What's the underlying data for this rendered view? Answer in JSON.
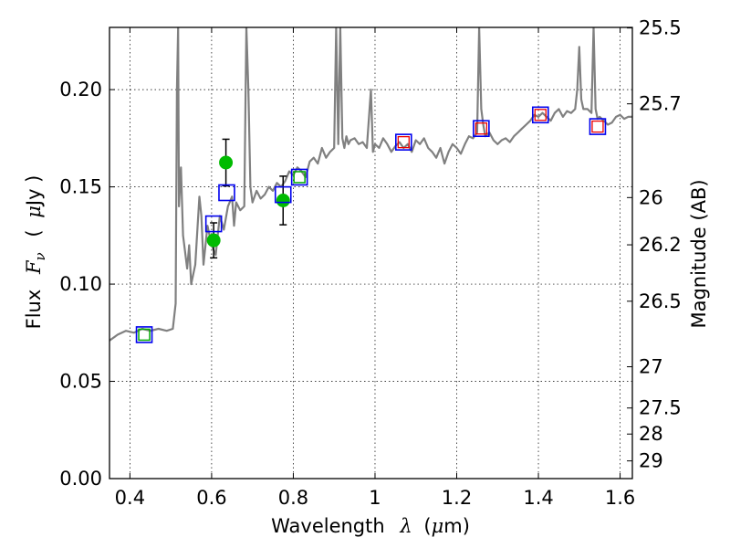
{
  "chart_data": {
    "type": "line",
    "xlabel_text": "Wavelength",
    "xlabel_symbol": "λ",
    "xlabel_unit_open": "(",
    "xlabel_unit_mu": "μ",
    "xlabel_unit_rest": "m)",
    "ylabel_text": "Flux",
    "ylabel_symbol": "F",
    "ylabel_subscript": "ν",
    "ylabel_unit_open": "(",
    "ylabel_unit_mu": "μ",
    "ylabel_unit_rest": "Jy )",
    "y2label": "Magnitude (AB)",
    "xlim": [
      0.35,
      1.63
    ],
    "ylim": [
      0.0,
      0.232
    ],
    "grid": true,
    "x_ticks": [
      {
        "value": 0.4,
        "label": "0.4"
      },
      {
        "value": 0.6,
        "label": "0.6"
      },
      {
        "value": 0.8,
        "label": "0.8"
      },
      {
        "value": 1.0,
        "label": "1"
      },
      {
        "value": 1.2,
        "label": "1.2"
      },
      {
        "value": 1.4,
        "label": "1.4"
      },
      {
        "value": 1.6,
        "label": "1.6"
      }
    ],
    "y_ticks": [
      {
        "value": 0.0,
        "label": "0.00"
      },
      {
        "value": 0.05,
        "label": "0.05"
      },
      {
        "value": 0.1,
        "label": "0.10"
      },
      {
        "value": 0.15,
        "label": "0.15"
      },
      {
        "value": 0.2,
        "label": "0.20"
      }
    ],
    "y2_ticks": [
      {
        "flux": 0.2317,
        "label": "25.5"
      },
      {
        "flux": 0.1927,
        "label": "25.7"
      },
      {
        "flux": 0.1445,
        "label": "26"
      },
      {
        "flux": 0.1202,
        "label": "26.2"
      },
      {
        "flux": 0.0912,
        "label": "26.5"
      },
      {
        "flux": 0.0575,
        "label": "27"
      },
      {
        "flux": 0.0363,
        "label": "27.5"
      },
      {
        "flux": 0.0229,
        "label": "28"
      },
      {
        "flux": 0.0091,
        "label": "29"
      }
    ],
    "series": [
      {
        "kind": "model-spectrum",
        "color": "#808080",
        "x": [
          0.35,
          0.37,
          0.39,
          0.41,
          0.43,
          0.45,
          0.47,
          0.49,
          0.505,
          0.512,
          0.515,
          0.518,
          0.52,
          0.525,
          0.53,
          0.54,
          0.545,
          0.55,
          0.56,
          0.57,
          0.575,
          0.58,
          0.59,
          0.6,
          0.61,
          0.615,
          0.62,
          0.63,
          0.64,
          0.65,
          0.655,
          0.66,
          0.67,
          0.68,
          0.685,
          0.69,
          0.695,
          0.7,
          0.71,
          0.72,
          0.73,
          0.74,
          0.75,
          0.76,
          0.77,
          0.78,
          0.79,
          0.8,
          0.81,
          0.82,
          0.83,
          0.84,
          0.85,
          0.86,
          0.87,
          0.88,
          0.89,
          0.9,
          0.905,
          0.91,
          0.915,
          0.92,
          0.925,
          0.93,
          0.935,
          0.94,
          0.95,
          0.96,
          0.97,
          0.98,
          0.99,
          0.995,
          1.0,
          1.01,
          1.02,
          1.03,
          1.04,
          1.05,
          1.06,
          1.07,
          1.08,
          1.09,
          1.1,
          1.11,
          1.12,
          1.13,
          1.14,
          1.15,
          1.16,
          1.17,
          1.18,
          1.19,
          1.2,
          1.21,
          1.22,
          1.23,
          1.24,
          1.25,
          1.255,
          1.26,
          1.265,
          1.27,
          1.28,
          1.29,
          1.3,
          1.31,
          1.32,
          1.33,
          1.34,
          1.35,
          1.36,
          1.37,
          1.38,
          1.39,
          1.4,
          1.41,
          1.42,
          1.43,
          1.44,
          1.45,
          1.46,
          1.47,
          1.48,
          1.49,
          1.495,
          1.5,
          1.505,
          1.51,
          1.52,
          1.53,
          1.535,
          1.54,
          1.545,
          1.55,
          1.56,
          1.57,
          1.58,
          1.59,
          1.6,
          1.61,
          1.62,
          1.63
        ],
        "y": [
          0.071,
          0.074,
          0.076,
          0.075,
          0.077,
          0.076,
          0.077,
          0.076,
          0.077,
          0.09,
          0.2,
          0.232,
          0.14,
          0.16,
          0.125,
          0.108,
          0.12,
          0.1,
          0.11,
          0.145,
          0.135,
          0.11,
          0.13,
          0.12,
          0.115,
          0.125,
          0.135,
          0.128,
          0.14,
          0.145,
          0.13,
          0.142,
          0.138,
          0.14,
          0.232,
          0.2,
          0.15,
          0.142,
          0.148,
          0.144,
          0.146,
          0.15,
          0.148,
          0.152,
          0.15,
          0.153,
          0.158,
          0.156,
          0.16,
          0.158,
          0.155,
          0.163,
          0.165,
          0.162,
          0.17,
          0.165,
          0.168,
          0.17,
          0.232,
          0.172,
          0.232,
          0.175,
          0.17,
          0.176,
          0.172,
          0.174,
          0.175,
          0.172,
          0.173,
          0.17,
          0.2,
          0.168,
          0.172,
          0.17,
          0.175,
          0.172,
          0.168,
          0.171,
          0.173,
          0.17,
          0.172,
          0.168,
          0.174,
          0.172,
          0.175,
          0.17,
          0.168,
          0.165,
          0.17,
          0.162,
          0.168,
          0.172,
          0.17,
          0.167,
          0.172,
          0.176,
          0.175,
          0.178,
          0.232,
          0.19,
          0.182,
          0.176,
          0.178,
          0.174,
          0.172,
          0.174,
          0.175,
          0.173,
          0.176,
          0.178,
          0.18,
          0.182,
          0.184,
          0.187,
          0.186,
          0.188,
          0.186,
          0.184,
          0.188,
          0.19,
          0.186,
          0.189,
          0.188,
          0.19,
          0.2,
          0.222,
          0.195,
          0.19,
          0.19,
          0.188,
          0.232,
          0.19,
          0.185,
          0.186,
          0.184,
          0.182,
          0.183,
          0.186,
          0.187,
          0.185,
          0.186,
          0.186
        ]
      },
      {
        "kind": "photometry-with-errors",
        "color": "#00bb00",
        "points": [
          {
            "x": 0.605,
            "y": 0.1225,
            "err": 0.009
          },
          {
            "x": 0.635,
            "y": 0.1625,
            "err": 0.012
          },
          {
            "x": 0.775,
            "y": 0.143,
            "err": 0.0125
          }
        ]
      },
      {
        "kind": "model-band-flux-blue",
        "color": "#0000ee",
        "points": [
          {
            "x": 0.435,
            "y": 0.074
          },
          {
            "x": 0.605,
            "y": 0.131
          },
          {
            "x": 0.637,
            "y": 0.147
          },
          {
            "x": 0.775,
            "y": 0.146
          },
          {
            "x": 0.815,
            "y": 0.155
          },
          {
            "x": 1.07,
            "y": 0.173
          },
          {
            "x": 1.26,
            "y": 0.18
          },
          {
            "x": 1.405,
            "y": 0.187
          },
          {
            "x": 1.545,
            "y": 0.181
          }
        ]
      },
      {
        "kind": "model-band-flux-green",
        "color": "#00aa00",
        "points": [
          {
            "x": 0.435,
            "y": 0.074
          },
          {
            "x": 0.815,
            "y": 0.155
          }
        ]
      },
      {
        "kind": "model-band-flux-red",
        "color": "#ee0000",
        "points": [
          {
            "x": 1.07,
            "y": 0.173
          },
          {
            "x": 1.26,
            "y": 0.18
          },
          {
            "x": 1.405,
            "y": 0.187
          },
          {
            "x": 1.545,
            "y": 0.181
          }
        ]
      }
    ]
  }
}
